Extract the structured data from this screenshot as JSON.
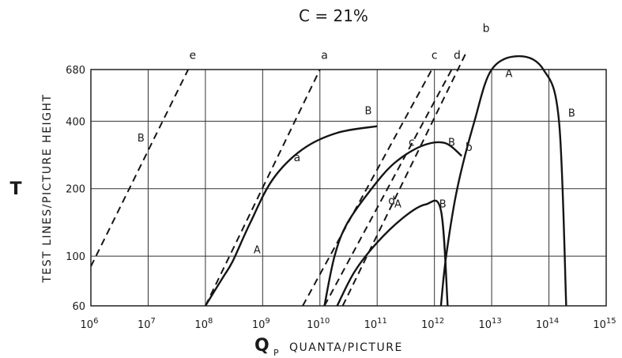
{
  "chart_data": {
    "type": "line",
    "title": "C = 21%",
    "xlabel_symbol": "Q",
    "xlabel_subscript": "P",
    "xlabel": "QUANTA/PICTURE",
    "ylabel_symbol": "T",
    "ylabel": "TEST LINES/PICTURE HEIGHT",
    "x_scale": "log",
    "y_scale": "log",
    "xlim": [
      1000000,
      1000000000000000
    ],
    "ylim": [
      60,
      680
    ],
    "x_ticks": [
      {
        "value": 1000000,
        "mantissa": "10",
        "exp": "6"
      },
      {
        "value": 10000000,
        "mantissa": "10",
        "exp": "7"
      },
      {
        "value": 100000000,
        "mantissa": "10",
        "exp": "8"
      },
      {
        "value": 1000000000,
        "mantissa": "10",
        "exp": "9"
      },
      {
        "value": 10000000000,
        "mantissa": "10",
        "exp": "10"
      },
      {
        "value": 100000000000,
        "mantissa": "10",
        "exp": "11"
      },
      {
        "value": 1000000000000,
        "mantissa": "10",
        "exp": "12"
      },
      {
        "value": 10000000000000,
        "mantissa": "10",
        "exp": "13"
      },
      {
        "value": 100000000000000,
        "mantissa": "10",
        "exp": "14"
      },
      {
        "value": 1000000000000000,
        "mantissa": "10",
        "exp": "15"
      }
    ],
    "y_ticks": [
      {
        "value": 60,
        "label": "60"
      },
      {
        "value": 100,
        "label": "100"
      },
      {
        "value": 200,
        "label": "200"
      },
      {
        "value": 400,
        "label": "400"
      },
      {
        "value": 680,
        "label": "680"
      }
    ],
    "grid": true,
    "legend": "none",
    "series": [
      {
        "name": "e",
        "style": "dashed",
        "x": [
          1000000,
          50000000
        ],
        "y": [
          90,
          680
        ]
      },
      {
        "name": "a",
        "style": "dashed",
        "x": [
          100000000,
          10000000000
        ],
        "y": [
          60,
          680
        ]
      },
      {
        "name": "c",
        "style": "dashed",
        "x": [
          5000000000,
          900000000000
        ],
        "y": [
          60,
          680
        ]
      },
      {
        "name": "d",
        "style": "dashed",
        "x": [
          12000000000,
          2000000000000
        ],
        "y": [
          60,
          680
        ]
      },
      {
        "name": "b",
        "style": "dashed",
        "x": [
          25000000000,
          3500000000000
        ],
        "y": [
          60,
          800
        ]
      },
      {
        "name": "a",
        "style": "solid",
        "x": [
          100000000,
          200000000,
          300000000,
          600000000,
          1500000000,
          5000000000,
          20000000000,
          100000000000
        ],
        "y": [
          60,
          80,
          95,
          140,
          220,
          300,
          355,
          380
        ]
      },
      {
        "name": "c",
        "style": "solid",
        "x": [
          12000000000,
          18000000000,
          30000000000,
          80000000000,
          200000000000,
          600000000000,
          1500000000000,
          3000000000000
        ],
        "y": [
          60,
          100,
          140,
          200,
          260,
          310,
          320,
          280
        ]
      },
      {
        "name": "d",
        "style": "solid",
        "x": [
          20000000000,
          40000000000,
          100000000000,
          300000000000,
          700000000000,
          1300000000000,
          1700000000000
        ],
        "y": [
          60,
          85,
          115,
          150,
          170,
          160,
          60
        ]
      },
      {
        "name": "b",
        "style": "solid",
        "x": [
          1300000000000,
          1600000000000,
          2500000000000,
          5000000000000,
          10000000000000,
          30000000000000,
          80000000000000,
          150000000000000,
          200000000000000
        ],
        "y": [
          60,
          100,
          200,
          400,
          680,
          780,
          680,
          400,
          60
        ]
      }
    ],
    "curve_labels": [
      {
        "text": "e",
        "x": 60000000,
        "y": 760
      },
      {
        "text": "a",
        "x": 12000000000,
        "y": 760
      },
      {
        "text": "c",
        "x": 1000000000000,
        "y": 760
      },
      {
        "text": "d",
        "x": 2500000000000,
        "y": 760
      },
      {
        "text": "b",
        "x": 8000000000000,
        "y": 1000
      },
      {
        "text": "a",
        "x": 4000000000,
        "y": 265
      },
      {
        "text": "c",
        "x": 400000000000,
        "y": 310
      },
      {
        "text": "d",
        "x": 180000000000,
        "y": 170
      },
      {
        "text": "b",
        "x": 4000000000000,
        "y": 295
      }
    ],
    "annotations": [
      {
        "text": "A",
        "x": 800000000,
        "y": 103
      },
      {
        "text": "A",
        "x": 230000000000,
        "y": 165
      },
      {
        "text": "A",
        "x": 20000000000000,
        "y": 630
      },
      {
        "text": "B",
        "x": 7500000,
        "y": 325
      },
      {
        "text": "B",
        "x": 70000000000,
        "y": 430
      },
      {
        "text": "B",
        "x": 2000000000000,
        "y": 310
      },
      {
        "text": "B",
        "x": 1400000000000,
        "y": 165
      },
      {
        "text": "B",
        "x": 250000000000000,
        "y": 420
      }
    ]
  }
}
